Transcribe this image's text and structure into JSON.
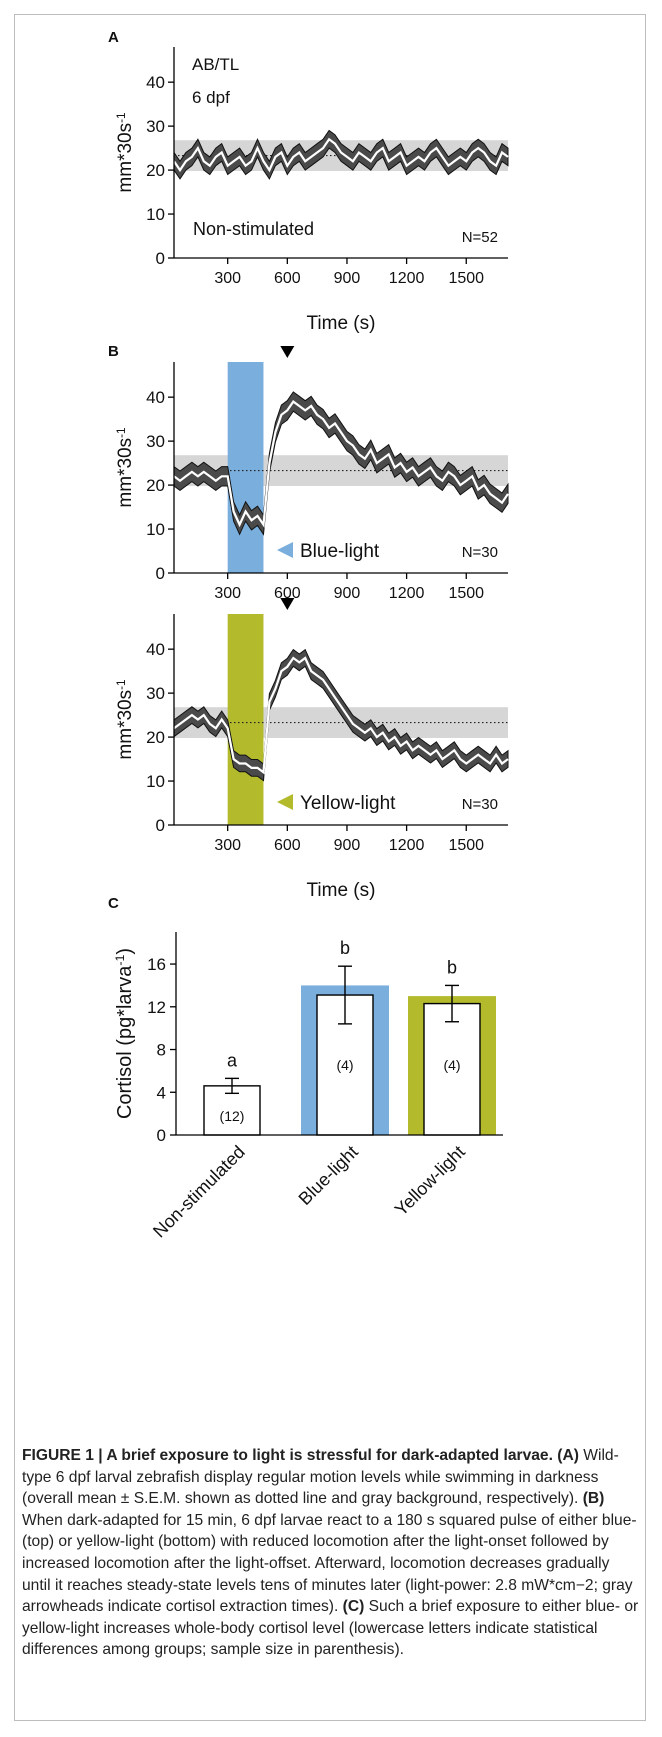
{
  "figure": {
    "panel_labels": [
      "A",
      "B",
      "C"
    ],
    "caption": {
      "title": "FIGURE 1 | A brief exposure to light is stressful for dark-adapted larvae.",
      "parts": [
        {
          "bold": "(A)",
          "text": " Wild-type 6 dpf larval zebrafish display regular motion levels while swimming in darkness (overall mean ± S.E.M. shown as dotted line and gray background, respectively). "
        },
        {
          "bold": "(B)",
          "text": " When dark-adapted for 15 min, 6 dpf larvae react to a 180 s squared pulse of either blue- (top) or yellow-light (bottom) with reduced locomotion after the light-onset followed by increased locomotion after the light-offset. Afterward, locomotion decreases gradually until it reaches steady-state levels tens of minutes later (light-power: 2.8 mW*cm−2; gray arrowheads indicate cortisol extraction times). "
        },
        {
          "bold": "(C)",
          "text": " Such a brief exposure to either blue- or yellow-light increases whole-body cortisol level (lowercase letters indicate statistical differences among groups; sample size in parenthesis)."
        }
      ]
    }
  },
  "chart_data": [
    {
      "panel": "A",
      "type": "line",
      "xlabel": "Time (s)",
      "ylabel": "mm*30s-1",
      "xticks": [
        300,
        600,
        900,
        1200,
        1500
      ],
      "yticks": [
        0,
        10,
        20,
        30,
        40
      ],
      "xlim": [
        30,
        1710
      ],
      "ylim": [
        0,
        48
      ],
      "annotations": [
        "AB/TL",
        "6 dpf",
        "Non-stimulated",
        "N=52"
      ],
      "overall_mean": 23.3,
      "overall_sem_band": [
        19.8,
        26.8
      ],
      "series": [
        {
          "x": [
            30,
            60,
            90,
            120,
            150,
            180,
            210,
            240,
            270,
            300,
            330,
            360,
            390,
            420,
            450,
            480,
            510,
            540,
            570,
            600,
            630,
            660,
            690,
            720,
            750,
            780,
            810,
            840,
            870,
            900,
            930,
            960,
            990,
            1020,
            1050,
            1080,
            1110,
            1140,
            1170,
            1200,
            1230,
            1260,
            1290,
            1320,
            1350,
            1380,
            1410,
            1440,
            1470,
            1500,
            1530,
            1560,
            1590,
            1620,
            1650,
            1680,
            1710
          ],
          "y": [
            22,
            20,
            22,
            23,
            25,
            22,
            21,
            23,
            24,
            21,
            22,
            23,
            21,
            22,
            25,
            22,
            20,
            23,
            24,
            21,
            23,
            24,
            22,
            23,
            24,
            25,
            27,
            26,
            24,
            23,
            22,
            24,
            23,
            22,
            24,
            25,
            22,
            23,
            24,
            21,
            22,
            23,
            22,
            24,
            25,
            23,
            21,
            22,
            23,
            22,
            24,
            25,
            24,
            22,
            21,
            24,
            23
          ],
          "sem": 2.0
        }
      ]
    },
    {
      "panel": "B-top",
      "type": "line",
      "xlabel": "",
      "ylabel": "mm*30s-1",
      "xticks": [
        300,
        600,
        900,
        1200,
        1500
      ],
      "yticks": [
        0,
        10,
        20,
        30,
        40
      ],
      "xlim": [
        30,
        1710
      ],
      "ylim": [
        0,
        48
      ],
      "annotations": [
        "Blue-light",
        "N=30"
      ],
      "stimulus": {
        "start": 300,
        "end": 480,
        "color": "#79aedd"
      },
      "arrow_at": 600,
      "overall_mean": 23.3,
      "overall_sem_band": [
        19.8,
        26.8
      ],
      "series": [
        {
          "x": [
            30,
            60,
            90,
            120,
            150,
            180,
            210,
            240,
            270,
            300,
            330,
            360,
            390,
            420,
            450,
            480,
            510,
            540,
            570,
            600,
            630,
            660,
            690,
            720,
            750,
            780,
            810,
            840,
            870,
            900,
            930,
            960,
            990,
            1020,
            1050,
            1080,
            1110,
            1140,
            1170,
            1200,
            1230,
            1260,
            1290,
            1320,
            1350,
            1380,
            1410,
            1440,
            1470,
            1500,
            1530,
            1560,
            1590,
            1620,
            1650,
            1680,
            1710
          ],
          "y": [
            22,
            21,
            22,
            23,
            22,
            23,
            22,
            21,
            22,
            22,
            14,
            11,
            14,
            12,
            13,
            11,
            25,
            32,
            36,
            37,
            39,
            38,
            37,
            38,
            36,
            35,
            33,
            34,
            32,
            30,
            29,
            27,
            26,
            28,
            25,
            26,
            27,
            24,
            25,
            23,
            24,
            22,
            23,
            24,
            22,
            21,
            23,
            22,
            20,
            21,
            22,
            19,
            20,
            18,
            17,
            16,
            18
          ],
          "sem": 2.2
        }
      ]
    },
    {
      "panel": "B-bottom",
      "type": "line",
      "xlabel": "Time (s)",
      "ylabel": "mm*30s-1",
      "xticks": [
        300,
        600,
        900,
        1200,
        1500
      ],
      "yticks": [
        0,
        10,
        20,
        30,
        40
      ],
      "xlim": [
        30,
        1710
      ],
      "ylim": [
        0,
        48
      ],
      "annotations": [
        "Yellow-light",
        "N=30"
      ],
      "stimulus": {
        "start": 300,
        "end": 480,
        "color": "#b3bb2c"
      },
      "arrow_at": 600,
      "overall_mean": 23.3,
      "overall_sem_band": [
        19.8,
        26.8
      ],
      "series": [
        {
          "x": [
            30,
            60,
            90,
            120,
            150,
            180,
            210,
            240,
            270,
            300,
            330,
            360,
            390,
            420,
            450,
            480,
            510,
            540,
            570,
            600,
            630,
            660,
            690,
            720,
            750,
            780,
            810,
            840,
            870,
            900,
            930,
            960,
            990,
            1020,
            1050,
            1080,
            1110,
            1140,
            1170,
            1200,
            1230,
            1260,
            1290,
            1320,
            1350,
            1380,
            1410,
            1440,
            1470,
            1500,
            1530,
            1560,
            1590,
            1620,
            1650,
            1680,
            1710
          ],
          "y": [
            22,
            23,
            24,
            25,
            24,
            25,
            23,
            22,
            24,
            22,
            15,
            14,
            14,
            13,
            13,
            12,
            28,
            31,
            35,
            36,
            38,
            37,
            38,
            35,
            34,
            33,
            31,
            29,
            27,
            25,
            23,
            22,
            21,
            22,
            20,
            21,
            19,
            20,
            18,
            19,
            17,
            18,
            17,
            16,
            17,
            15,
            16,
            17,
            15,
            14,
            15,
            16,
            15,
            14,
            16,
            14,
            15
          ],
          "sem": 1.9
        }
      ]
    },
    {
      "panel": "C",
      "type": "bar",
      "ylabel": "Cortisol (pg*larva-1)",
      "categories": [
        "Non-stimulated",
        "Blue-light",
        "Yellow-light"
      ],
      "values": [
        4.6,
        13.1,
        12.3
      ],
      "errors": [
        0.7,
        2.7,
        1.7
      ],
      "outer_values": [
        4.6,
        14.0,
        13.0
      ],
      "letters": [
        "a",
        "b",
        "b"
      ],
      "sample_sizes": [
        "(12)",
        "(4)",
        "(4)"
      ],
      "colors": [
        "#ffffff",
        "#79aedd",
        "#b3bb2c"
      ],
      "yticks": [
        0,
        4,
        8,
        12,
        16
      ],
      "ylim": [
        0,
        19
      ]
    }
  ]
}
